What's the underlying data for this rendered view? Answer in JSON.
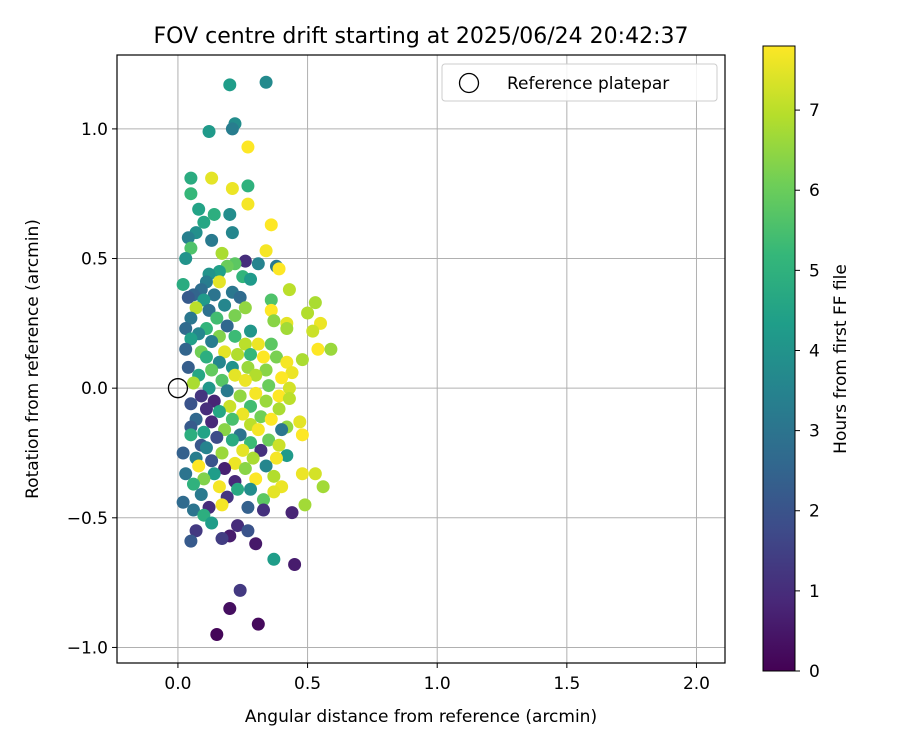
{
  "chart_data": {
    "type": "scatter",
    "title": "FOV centre drift starting at 2025/06/24 20:42:37",
    "xlabel": "Angular distance from reference (arcmin)",
    "ylabel": "Rotation from reference (arcmin)",
    "xlim": [
      -0.235,
      2.11
    ],
    "ylim": [
      -1.06,
      1.285
    ],
    "xticks": [
      0.0,
      0.5,
      1.0,
      1.5,
      2.0
    ],
    "xtick_labels": [
      "0.0",
      "0.5",
      "1.0",
      "1.5",
      "2.0"
    ],
    "yticks": [
      -1.0,
      -0.5,
      0.0,
      0.5,
      1.0
    ],
    "ytick_labels": [
      "−1.0",
      "−0.5",
      "0.0",
      "0.5",
      "1.0"
    ],
    "grid": true,
    "legend": {
      "position": "top-right",
      "label": "Reference platepar"
    },
    "reference_point": {
      "x": 0.0,
      "y": 0.0
    },
    "colorbar": {
      "label": "Hours from first FF file",
      "range": [
        0,
        7.8
      ],
      "ticks": [
        0,
        1,
        2,
        3,
        4,
        5,
        6,
        7
      ],
      "tick_labels": [
        "0",
        "1",
        "2",
        "3",
        "4",
        "5",
        "6",
        "7"
      ],
      "colormap": "viridis",
      "colors": [
        "#440154",
        "#482878",
        "#3e4a89",
        "#31688e",
        "#26828e",
        "#1f9e89",
        "#35b779",
        "#6ece58",
        "#b5de2b",
        "#fde725"
      ]
    },
    "points": [
      {
        "x": 0.2,
        "y": 1.17,
        "c": 4.3
      },
      {
        "x": 0.34,
        "y": 1.18,
        "c": 3.7
      },
      {
        "x": 0.22,
        "y": 1.02,
        "c": 3.8
      },
      {
        "x": 0.21,
        "y": 1.0,
        "c": 3.3
      },
      {
        "x": 0.12,
        "y": 0.99,
        "c": 4.2
      },
      {
        "x": 0.27,
        "y": 0.93,
        "c": 7.8
      },
      {
        "x": 0.05,
        "y": 0.81,
        "c": 4.8
      },
      {
        "x": 0.13,
        "y": 0.81,
        "c": 7.5
      },
      {
        "x": 0.21,
        "y": 0.77,
        "c": 7.6
      },
      {
        "x": 0.27,
        "y": 0.78,
        "c": 5.0
      },
      {
        "x": 0.05,
        "y": 0.75,
        "c": 5.2
      },
      {
        "x": 0.27,
        "y": 0.71,
        "c": 7.7
      },
      {
        "x": 0.08,
        "y": 0.69,
        "c": 4.5
      },
      {
        "x": 0.14,
        "y": 0.67,
        "c": 4.9
      },
      {
        "x": 0.2,
        "y": 0.67,
        "c": 3.8
      },
      {
        "x": 0.1,
        "y": 0.64,
        "c": 4.6
      },
      {
        "x": 0.36,
        "y": 0.63,
        "c": 7.8
      },
      {
        "x": 0.07,
        "y": 0.6,
        "c": 3.9
      },
      {
        "x": 0.21,
        "y": 0.6,
        "c": 3.6
      },
      {
        "x": 0.04,
        "y": 0.58,
        "c": 3.4
      },
      {
        "x": 0.13,
        "y": 0.57,
        "c": 3.2
      },
      {
        "x": 0.05,
        "y": 0.54,
        "c": 5.6
      },
      {
        "x": 0.34,
        "y": 0.53,
        "c": 7.7
      },
      {
        "x": 0.17,
        "y": 0.52,
        "c": 6.8
      },
      {
        "x": 0.03,
        "y": 0.5,
        "c": 4.0
      },
      {
        "x": 0.31,
        "y": 0.48,
        "c": 3.5
      },
      {
        "x": 0.26,
        "y": 0.49,
        "c": 1.0
      },
      {
        "x": 0.22,
        "y": 0.48,
        "c": 5.8
      },
      {
        "x": 0.38,
        "y": 0.47,
        "c": 3.2
      },
      {
        "x": 0.39,
        "y": 0.46,
        "c": 7.9
      },
      {
        "x": 0.19,
        "y": 0.47,
        "c": 6.0
      },
      {
        "x": 0.16,
        "y": 0.45,
        "c": 4.4
      },
      {
        "x": 0.12,
        "y": 0.44,
        "c": 4.0
      },
      {
        "x": 0.25,
        "y": 0.43,
        "c": 5.1
      },
      {
        "x": 0.28,
        "y": 0.42,
        "c": 4.2
      },
      {
        "x": 0.11,
        "y": 0.41,
        "c": 3.3
      },
      {
        "x": 0.16,
        "y": 0.41,
        "c": 7.5
      },
      {
        "x": 0.02,
        "y": 0.4,
        "c": 4.8
      },
      {
        "x": 0.09,
        "y": 0.38,
        "c": 2.8
      },
      {
        "x": 0.43,
        "y": 0.38,
        "c": 7.0
      },
      {
        "x": 0.21,
        "y": 0.37,
        "c": 3.1
      },
      {
        "x": 0.06,
        "y": 0.36,
        "c": 2.5
      },
      {
        "x": 0.14,
        "y": 0.36,
        "c": 3.0
      },
      {
        "x": 0.24,
        "y": 0.35,
        "c": 2.7
      },
      {
        "x": 0.04,
        "y": 0.35,
        "c": 2.2
      },
      {
        "x": 0.36,
        "y": 0.34,
        "c": 5.6
      },
      {
        "x": 0.1,
        "y": 0.34,
        "c": 4.2
      },
      {
        "x": 0.53,
        "y": 0.33,
        "c": 6.8
      },
      {
        "x": 0.18,
        "y": 0.32,
        "c": 3.6
      },
      {
        "x": 0.26,
        "y": 0.31,
        "c": 6.5
      },
      {
        "x": 0.07,
        "y": 0.31,
        "c": 7.0
      },
      {
        "x": 0.12,
        "y": 0.3,
        "c": 2.9
      },
      {
        "x": 0.36,
        "y": 0.3,
        "c": 7.8
      },
      {
        "x": 0.5,
        "y": 0.29,
        "c": 6.9
      },
      {
        "x": 0.22,
        "y": 0.28,
        "c": 6.2
      },
      {
        "x": 0.15,
        "y": 0.27,
        "c": 5.4
      },
      {
        "x": 0.05,
        "y": 0.27,
        "c": 3.1
      },
      {
        "x": 0.37,
        "y": 0.26,
        "c": 6.4
      },
      {
        "x": 0.42,
        "y": 0.25,
        "c": 7.5
      },
      {
        "x": 0.55,
        "y": 0.25,
        "c": 7.6
      },
      {
        "x": 0.19,
        "y": 0.24,
        "c": 2.6
      },
      {
        "x": 0.11,
        "y": 0.23,
        "c": 5.1
      },
      {
        "x": 0.03,
        "y": 0.23,
        "c": 2.7
      },
      {
        "x": 0.42,
        "y": 0.23,
        "c": 6.7
      },
      {
        "x": 0.28,
        "y": 0.22,
        "c": 4.1
      },
      {
        "x": 0.52,
        "y": 0.22,
        "c": 7.2
      },
      {
        "x": 0.08,
        "y": 0.21,
        "c": 3.6
      },
      {
        "x": 0.16,
        "y": 0.2,
        "c": 6.3
      },
      {
        "x": 0.22,
        "y": 0.2,
        "c": 5.3
      },
      {
        "x": 0.05,
        "y": 0.19,
        "c": 4.4
      },
      {
        "x": 0.13,
        "y": 0.18,
        "c": 3.3
      },
      {
        "x": 0.26,
        "y": 0.17,
        "c": 7.0
      },
      {
        "x": 0.36,
        "y": 0.17,
        "c": 5.8
      },
      {
        "x": 0.31,
        "y": 0.17,
        "c": 7.6
      },
      {
        "x": 0.59,
        "y": 0.15,
        "c": 6.6
      },
      {
        "x": 0.54,
        "y": 0.15,
        "c": 7.9
      },
      {
        "x": 0.03,
        "y": 0.15,
        "c": 2.5
      },
      {
        "x": 0.09,
        "y": 0.14,
        "c": 6.1
      },
      {
        "x": 0.18,
        "y": 0.14,
        "c": 7.5
      },
      {
        "x": 0.23,
        "y": 0.13,
        "c": 6.9
      },
      {
        "x": 0.28,
        "y": 0.13,
        "c": 5.2
      },
      {
        "x": 0.33,
        "y": 0.12,
        "c": 7.8
      },
      {
        "x": 0.11,
        "y": 0.12,
        "c": 4.9
      },
      {
        "x": 0.38,
        "y": 0.12,
        "c": 6.2
      },
      {
        "x": 0.48,
        "y": 0.11,
        "c": 6.8
      },
      {
        "x": 0.16,
        "y": 0.1,
        "c": 3.6
      },
      {
        "x": 0.42,
        "y": 0.1,
        "c": 7.7
      },
      {
        "x": 0.04,
        "y": 0.08,
        "c": 2.3
      },
      {
        "x": 0.21,
        "y": 0.08,
        "c": 4.0
      },
      {
        "x": 0.27,
        "y": 0.08,
        "c": 6.6
      },
      {
        "x": 0.13,
        "y": 0.07,
        "c": 5.9
      },
      {
        "x": 0.34,
        "y": 0.07,
        "c": 6.4
      },
      {
        "x": 0.44,
        "y": 0.06,
        "c": 7.6
      },
      {
        "x": 0.08,
        "y": 0.05,
        "c": 4.6
      },
      {
        "x": 0.22,
        "y": 0.05,
        "c": 7.5
      },
      {
        "x": 0.3,
        "y": 0.05,
        "c": 6.9
      },
      {
        "x": 0.4,
        "y": 0.04,
        "c": 7.8
      },
      {
        "x": 0.17,
        "y": 0.03,
        "c": 5.7
      },
      {
        "x": 0.26,
        "y": 0.03,
        "c": 7.6
      },
      {
        "x": 0.06,
        "y": 0.02,
        "c": 6.8
      },
      {
        "x": 0.35,
        "y": 0.01,
        "c": 6.0
      },
      {
        "x": 0.12,
        "y": 0.0,
        "c": 4.1
      },
      {
        "x": 0.43,
        "y": 0.0,
        "c": 7.3
      },
      {
        "x": 0.19,
        "y": -0.01,
        "c": 3.2
      },
      {
        "x": 0.3,
        "y": -0.02,
        "c": 7.7
      },
      {
        "x": 0.39,
        "y": -0.03,
        "c": 7.9
      },
      {
        "x": 0.09,
        "y": -0.03,
        "c": 1.2
      },
      {
        "x": 0.24,
        "y": -0.03,
        "c": 6.5
      },
      {
        "x": 0.14,
        "y": -0.05,
        "c": 0.8
      },
      {
        "x": 0.43,
        "y": -0.04,
        "c": 7.0
      },
      {
        "x": 0.34,
        "y": -0.05,
        "c": 6.6
      },
      {
        "x": 0.05,
        "y": -0.06,
        "c": 2.0
      },
      {
        "x": 0.2,
        "y": -0.07,
        "c": 7.2
      },
      {
        "x": 0.28,
        "y": -0.07,
        "c": 5.4
      },
      {
        "x": 0.11,
        "y": -0.08,
        "c": 1.0
      },
      {
        "x": 0.39,
        "y": -0.08,
        "c": 6.8
      },
      {
        "x": 0.16,
        "y": -0.09,
        "c": 4.6
      },
      {
        "x": 0.25,
        "y": -0.1,
        "c": 7.6
      },
      {
        "x": 0.32,
        "y": -0.11,
        "c": 6.1
      },
      {
        "x": 0.07,
        "y": -0.12,
        "c": 2.6
      },
      {
        "x": 0.21,
        "y": -0.12,
        "c": 5.5
      },
      {
        "x": 0.36,
        "y": -0.12,
        "c": 7.8
      },
      {
        "x": 0.47,
        "y": -0.13,
        "c": 7.5
      },
      {
        "x": 0.13,
        "y": -0.13,
        "c": 0.9
      },
      {
        "x": 0.28,
        "y": -0.14,
        "c": 7.0
      },
      {
        "x": 0.42,
        "y": -0.15,
        "c": 6.5
      },
      {
        "x": 0.05,
        "y": -0.15,
        "c": 2.2
      },
      {
        "x": 0.18,
        "y": -0.16,
        "c": 6.4
      },
      {
        "x": 0.31,
        "y": -0.16,
        "c": 7.7
      },
      {
        "x": 0.4,
        "y": -0.16,
        "c": 3.1
      },
      {
        "x": 0.1,
        "y": -0.17,
        "c": 4.5
      },
      {
        "x": 0.24,
        "y": -0.18,
        "c": 3.0
      },
      {
        "x": 0.48,
        "y": -0.18,
        "c": 7.9
      },
      {
        "x": 0.05,
        "y": -0.18,
        "c": 4.9
      },
      {
        "x": 0.15,
        "y": -0.19,
        "c": 1.8
      },
      {
        "x": 0.35,
        "y": -0.2,
        "c": 6.0
      },
      {
        "x": 0.21,
        "y": -0.2,
        "c": 4.8
      },
      {
        "x": 0.28,
        "y": -0.21,
        "c": 5.3
      },
      {
        "x": 0.09,
        "y": -0.22,
        "c": 2.1
      },
      {
        "x": 0.39,
        "y": -0.22,
        "c": 7.2
      },
      {
        "x": 0.11,
        "y": -0.23,
        "c": 3.5
      },
      {
        "x": 0.25,
        "y": -0.24,
        "c": 7.5
      },
      {
        "x": 0.32,
        "y": -0.24,
        "c": 1.1
      },
      {
        "x": 0.17,
        "y": -0.25,
        "c": 6.6
      },
      {
        "x": 0.02,
        "y": -0.25,
        "c": 2.4
      },
      {
        "x": 0.42,
        "y": -0.26,
        "c": 4.2
      },
      {
        "x": 0.07,
        "y": -0.27,
        "c": 3.3
      },
      {
        "x": 0.29,
        "y": -0.27,
        "c": 6.8
      },
      {
        "x": 0.38,
        "y": -0.27,
        "c": 7.7
      },
      {
        "x": 0.13,
        "y": -0.28,
        "c": 2.0
      },
      {
        "x": 0.22,
        "y": -0.29,
        "c": 7.6
      },
      {
        "x": 0.34,
        "y": -0.3,
        "c": 3.6
      },
      {
        "x": 0.08,
        "y": -0.3,
        "c": 7.9
      },
      {
        "x": 0.18,
        "y": -0.31,
        "c": 0.7
      },
      {
        "x": 0.26,
        "y": -0.31,
        "c": 6.4
      },
      {
        "x": 0.48,
        "y": -0.33,
        "c": 7.6
      },
      {
        "x": 0.03,
        "y": -0.33,
        "c": 3.0
      },
      {
        "x": 0.53,
        "y": -0.33,
        "c": 7.3
      },
      {
        "x": 0.14,
        "y": -0.33,
        "c": 4.3
      },
      {
        "x": 0.37,
        "y": -0.34,
        "c": 6.9
      },
      {
        "x": 0.3,
        "y": -0.35,
        "c": 7.8
      },
      {
        "x": 0.1,
        "y": -0.35,
        "c": 6.3
      },
      {
        "x": 0.22,
        "y": -0.36,
        "c": 0.9
      },
      {
        "x": 0.06,
        "y": -0.37,
        "c": 5.0
      },
      {
        "x": 0.56,
        "y": -0.38,
        "c": 6.7
      },
      {
        "x": 0.16,
        "y": -0.38,
        "c": 7.7
      },
      {
        "x": 0.4,
        "y": -0.38,
        "c": 7.6
      },
      {
        "x": 0.28,
        "y": -0.39,
        "c": 3.8
      },
      {
        "x": 0.23,
        "y": -0.39,
        "c": 4.7
      },
      {
        "x": 0.37,
        "y": -0.4,
        "c": 7.5
      },
      {
        "x": 0.09,
        "y": -0.41,
        "c": 3.2
      },
      {
        "x": 0.19,
        "y": -0.42,
        "c": 1.2
      },
      {
        "x": 0.33,
        "y": -0.43,
        "c": 5.8
      },
      {
        "x": 0.02,
        "y": -0.44,
        "c": 2.7
      },
      {
        "x": 0.49,
        "y": -0.45,
        "c": 6.7
      },
      {
        "x": 0.17,
        "y": -0.45,
        "c": 7.7
      },
      {
        "x": 0.27,
        "y": -0.46,
        "c": 2.4
      },
      {
        "x": 0.12,
        "y": -0.46,
        "c": 1.0
      },
      {
        "x": 0.06,
        "y": -0.47,
        "c": 3.0
      },
      {
        "x": 0.33,
        "y": -0.47,
        "c": 1.1
      },
      {
        "x": 0.44,
        "y": -0.48,
        "c": 0.8
      },
      {
        "x": 0.1,
        "y": -0.49,
        "c": 4.9
      },
      {
        "x": 0.13,
        "y": -0.52,
        "c": 4.3
      },
      {
        "x": 0.23,
        "y": -0.53,
        "c": 1.0
      },
      {
        "x": 0.07,
        "y": -0.55,
        "c": 1.3
      },
      {
        "x": 0.27,
        "y": -0.55,
        "c": 2.0
      },
      {
        "x": 0.2,
        "y": -0.57,
        "c": 0.6
      },
      {
        "x": 0.17,
        "y": -0.58,
        "c": 1.4
      },
      {
        "x": 0.05,
        "y": -0.59,
        "c": 2.2
      },
      {
        "x": 0.3,
        "y": -0.6,
        "c": 0.5
      },
      {
        "x": 0.37,
        "y": -0.66,
        "c": 4.3
      },
      {
        "x": 0.45,
        "y": -0.68,
        "c": 0.6
      },
      {
        "x": 0.24,
        "y": -0.78,
        "c": 1.3
      },
      {
        "x": 0.2,
        "y": -0.85,
        "c": 0.3
      },
      {
        "x": 0.31,
        "y": -0.91,
        "c": 0.2
      },
      {
        "x": 0.15,
        "y": -0.95,
        "c": 0.1
      }
    ]
  }
}
